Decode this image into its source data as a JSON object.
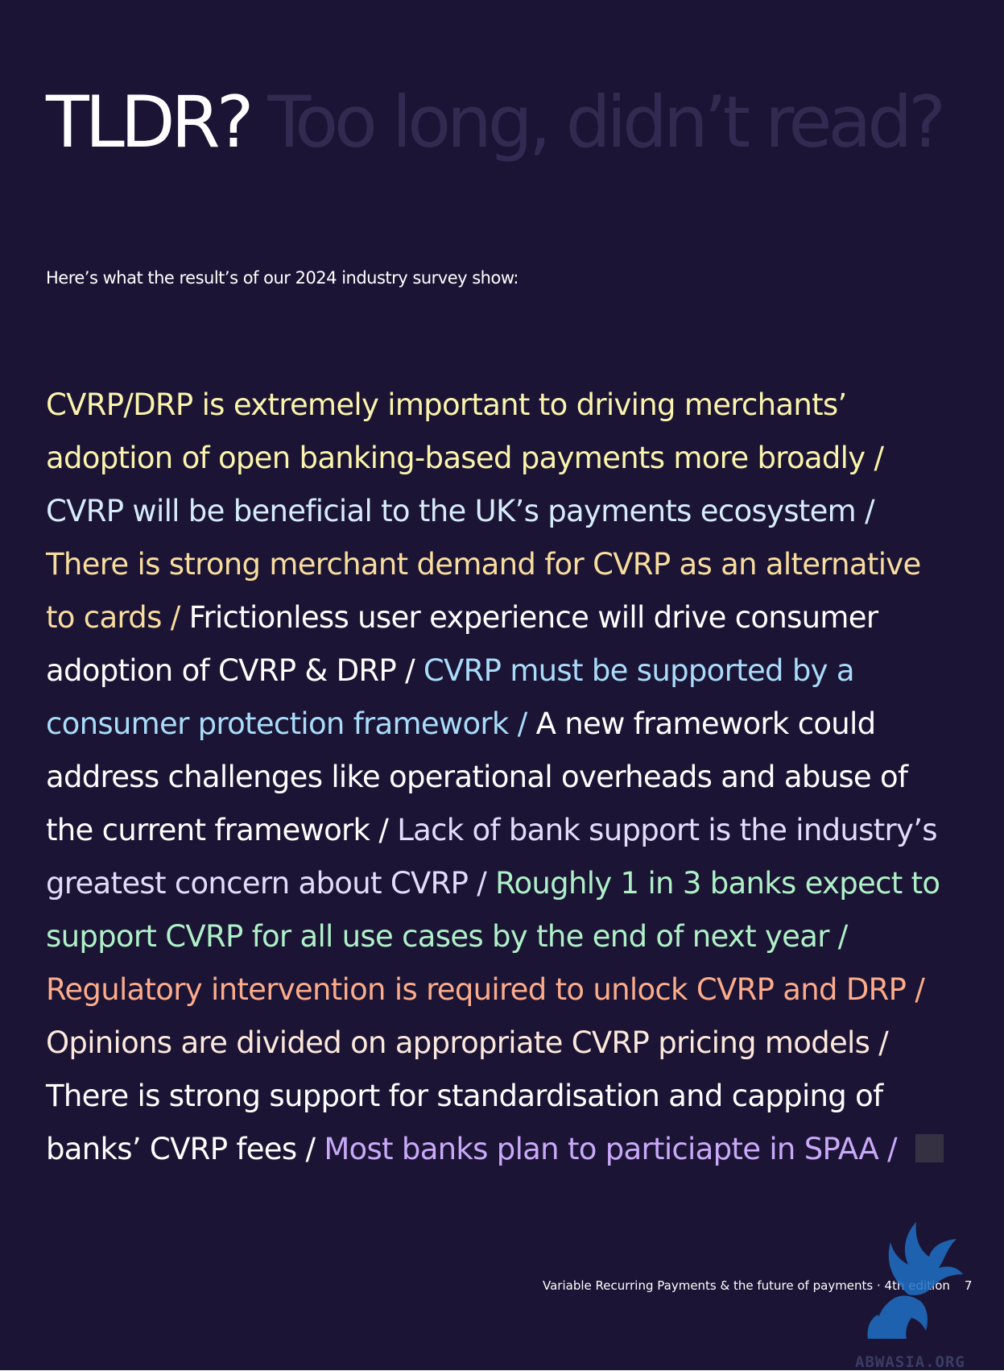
{
  "title": {
    "main": "TLDR?",
    "subtitle": "Too long, didn’t read?"
  },
  "intro": "Here’s what the result’s of our 2024 industry survey show:",
  "findings": [
    {
      "text": "CVRP/DRP is extremely important to driving merchants’ adoption of open banking-based payments more broadly",
      "color": "#fbf4ac"
    },
    {
      "text": "CVRP will be beneficial to the UK’s payments ecosystem",
      "color": "#d6ecfb"
    },
    {
      "text": "There is strong merchant demand for CVRP as an alternative to cards",
      "color": "#f9dd9e"
    },
    {
      "text": "Frictionless user experience will drive consumer adoption of CVRP & DRP",
      "color": "#ffffff"
    },
    {
      "text": "CVRP must be supported by a consumer protection framework",
      "color": "#a9dcfb"
    },
    {
      "text": "A new framework could  address challenges like operational overheads and abuse of the current framework",
      "color": "#ffffff"
    },
    {
      "text": "Lack of bank support is the industry’s greatest concern about CVRP",
      "color": "#e5dbfb"
    },
    {
      "text": "Roughly 1 in 3 banks expect to support CVRP for all use cases by the end of next year",
      "color": "#aef1c7"
    },
    {
      "text": "Regulatory intervention is required to unlock CVRP and DRP",
      "color": "#fcac8a"
    },
    {
      "text": "Opinions are divided on appropriate CVRP pricing models",
      "color": "#fce8dc"
    },
    {
      "text": "There is strong support for standardisation and capping of banks’ CVRP fees",
      "color": "#ffffff"
    },
    {
      "text": "Most banks plan to particiapte in SPAA ",
      "color": "#c9a9f9"
    }
  ],
  "separator": "/",
  "footer": {
    "title": "Variable Recurring Payments & the future of payments · 4th edition",
    "page_number": "7"
  },
  "watermark": {
    "text": "ABWASIA.ORG",
    "icon": "griffin-logo-icon"
  },
  "colors": {
    "background": "#1c1434",
    "title": "#ffffff",
    "subtitle": "#332a52",
    "end_square": "#363142"
  }
}
